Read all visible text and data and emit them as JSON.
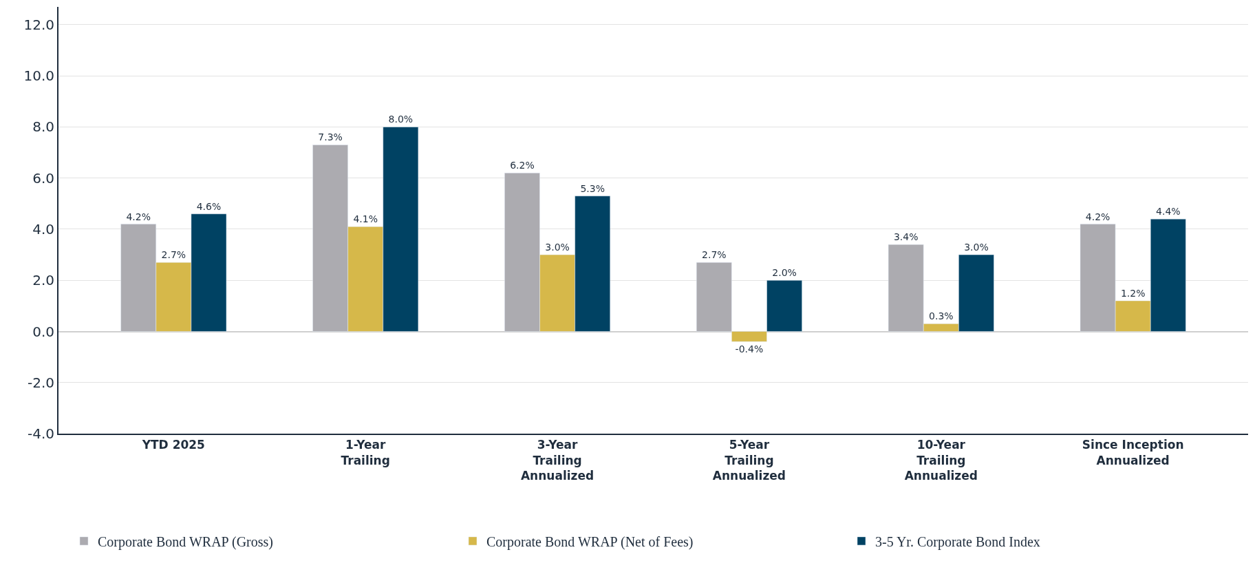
{
  "chart_data": {
    "type": "bar",
    "categories": [
      "YTD 2025",
      "1-Year\nTrailing",
      "3-Year\nTrailing\nAnnualized",
      "5-Year\nTrailing\nAnnualized",
      "10-Year\nTrailing\nAnnualized",
      "Since Inception\nAnnualized"
    ],
    "series": [
      {
        "name": "Corporate Bond WRAP (Gross)",
        "color": "#acabb0",
        "values": [
          4.2,
          7.3,
          6.2,
          2.7,
          3.4,
          4.2
        ],
        "value_labels": [
          "4.2%",
          "7.3%",
          "6.2%",
          "2.7%",
          "3.4%",
          "4.2%"
        ]
      },
      {
        "name": "Corporate Bond WRAP (Net of Fees)",
        "color": "#d6b84a",
        "values": [
          2.7,
          4.1,
          3.0,
          -0.4,
          0.3,
          1.2
        ],
        "value_labels": [
          "2.7%",
          "4.1%",
          "3.0%",
          "-0.4%",
          "0.3%",
          "1.2%"
        ]
      },
      {
        "name": "3-5 Yr. Corporate Bond Index",
        "color": "#004263",
        "values": [
          4.6,
          8.0,
          5.3,
          2.0,
          3.0,
          4.4
        ],
        "value_labels": [
          "4.6%",
          "8.0%",
          "5.3%",
          "2.0%",
          "3.0%",
          "4.4%"
        ]
      }
    ],
    "ylim": [
      -4,
      12.7
    ],
    "yticks": [
      {
        "value": -4,
        "label": "-4.0"
      },
      {
        "value": -2,
        "label": "-2.0"
      },
      {
        "value": 0,
        "label": "0.0"
      },
      {
        "value": 2,
        "label": "2.0"
      },
      {
        "value": 4,
        "label": "4.0"
      },
      {
        "value": 6,
        "label": "6.0"
      },
      {
        "value": 8,
        "label": "8.0"
      },
      {
        "value": 10,
        "label": "10.0"
      },
      {
        "value": 12,
        "label": "12.0"
      }
    ],
    "grid": "y",
    "legend": "bottom"
  }
}
